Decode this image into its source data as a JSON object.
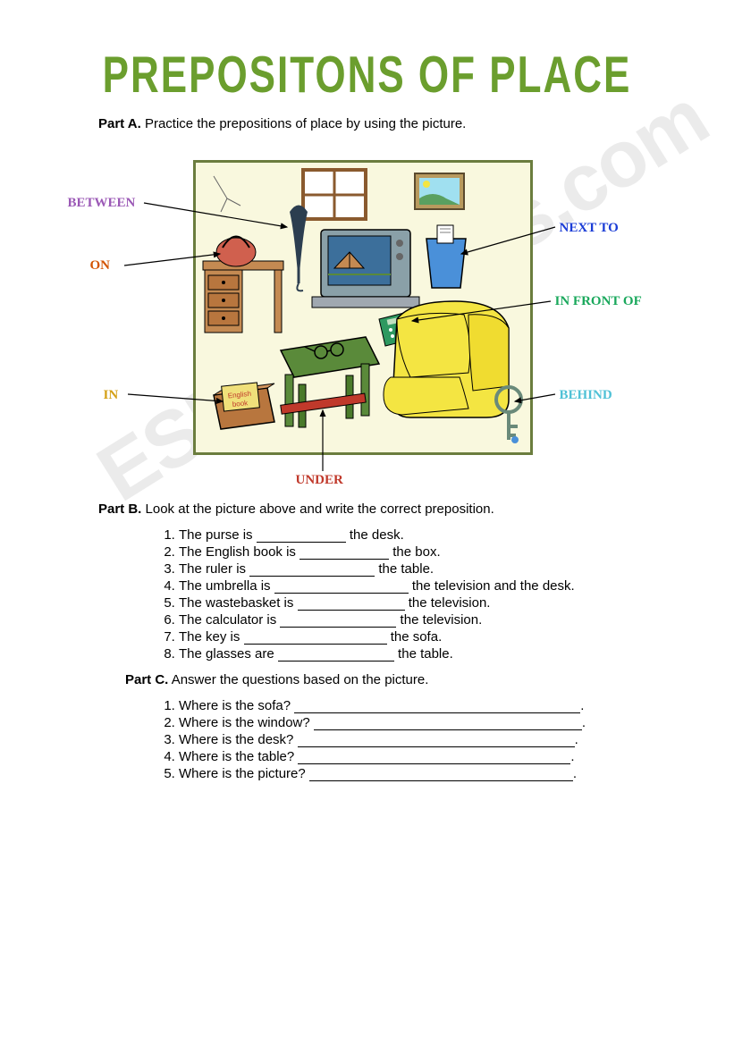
{
  "title": "PREPOSITONS OF PLACE",
  "title_color": "#6b9e2e",
  "watermark_text": "ESLprintables.com",
  "partA": {
    "label": "Part A.",
    "text": "Practice the prepositions of place by using the picture."
  },
  "labels": {
    "between": {
      "text": "BETWEEN",
      "color": "#9b59b6"
    },
    "on": {
      "text": "ON",
      "color": "#d35400"
    },
    "in": {
      "text": "IN",
      "color": "#d4a017"
    },
    "nextto": {
      "text": "NEXT TO",
      "color": "#1a3cd6"
    },
    "infrontof": {
      "text": "IN FRONT OF",
      "color": "#1aa85c"
    },
    "behind": {
      "text": "BEHIND",
      "color": "#4fc1d6"
    },
    "under": {
      "text": "UNDER",
      "color": "#c0392b"
    }
  },
  "room": {
    "border_color": "#6b7d3e",
    "bg_color": "#f9f8de",
    "desk_color": "#c48a52",
    "purse_color": "#d0604e",
    "umbrella_color": "#2c3e50",
    "tv_color": "#8aa0a8",
    "tv_screen_color": "#3c6f9b",
    "wastebasket_color": "#4a90d9",
    "sofa_color": "#f4e542",
    "table_color": "#5a8a3a",
    "box_color": "#b8763e",
    "book_color": "#f0e07a",
    "calculator_color": "#2e9960",
    "key_color": "#6a8a7a",
    "window_color": "#8a5a2e",
    "picture_color": "#5aa060",
    "ruler_color": "#c0392b"
  },
  "partB": {
    "label": "Part B.",
    "text": "Look at the picture above and write the correct preposition.",
    "items": [
      {
        "pre": "The purse is",
        "blank_w": 100,
        "post": "the desk."
      },
      {
        "pre": "The English book is",
        "blank_w": 100,
        "post": "the box."
      },
      {
        "pre": "The ruler is",
        "blank_w": 140,
        "post": "the table."
      },
      {
        "pre": "The umbrella is",
        "blank_w": 150,
        "post": "the television and the desk."
      },
      {
        "pre": "The wastebasket is",
        "blank_w": 120,
        "post": "the television."
      },
      {
        "pre": "The calculator is",
        "blank_w": 130,
        "post": "the television."
      },
      {
        "pre": "The key is",
        "blank_w": 160,
        "post": "the sofa."
      },
      {
        "pre": "The glasses are",
        "blank_w": 130,
        "post": "the table."
      }
    ]
  },
  "partC": {
    "label": "Part C.",
    "text": "Answer the questions based on the picture.",
    "items": [
      {
        "q": "Where is the sofa?",
        "blank_w": 320
      },
      {
        "q": "Where is the window?",
        "blank_w": 300
      },
      {
        "q": "Where is the desk?",
        "blank_w": 310
      },
      {
        "q": "Where is the table?",
        "blank_w": 305
      },
      {
        "q": "Where is the picture?",
        "blank_w": 295
      }
    ]
  }
}
